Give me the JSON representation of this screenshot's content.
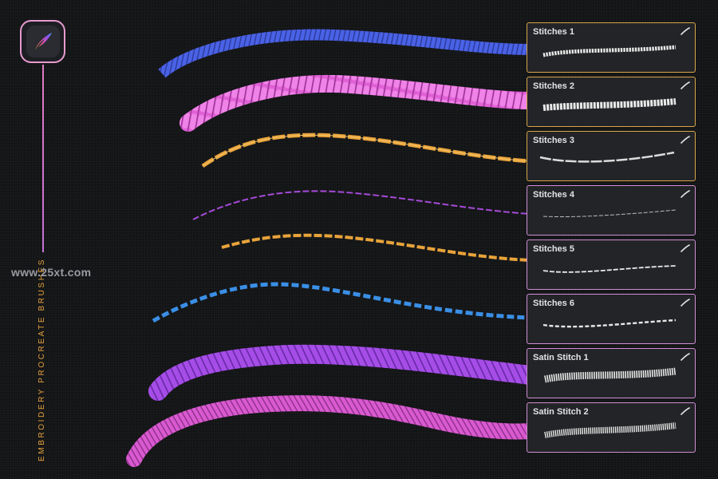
{
  "app": {
    "icon": "procreate-brush-icon",
    "vertical_title": "EMBROIDERY PROCREATE BRUSHES",
    "watermark": "www.25xt.com"
  },
  "brushes": [
    {
      "label": "Stitches 1",
      "color": "#4a62e6",
      "border": "#d7a64a",
      "icon": "pen-stroke-icon"
    },
    {
      "label": "Stitches 2",
      "color": "#e060d6",
      "border": "#d7a64a",
      "icon": "pen-stroke-icon"
    },
    {
      "label": "Stitches 3",
      "color": "#e8a33a",
      "border": "#d7a64a",
      "icon": "pen-stroke-icon"
    },
    {
      "label": "Stitches 4",
      "color": "#a44ad8",
      "border": "#d08fd6",
      "icon": "pen-stroke-icon"
    },
    {
      "label": "Stitches 5",
      "color": "#e8a33a",
      "border": "#d08fd6",
      "icon": "pen-stroke-icon"
    },
    {
      "label": "Stitches 6",
      "color": "#3a8fe6",
      "border": "#d08fd6",
      "icon": "pen-stroke-icon"
    },
    {
      "label": "Satin Stitch 1",
      "color": "#a64de8",
      "border": "#d08fd6",
      "icon": "pen-stroke-icon"
    },
    {
      "label": "Satin Stitch 2",
      "color": "#d95ad0",
      "border": "#d08fd6",
      "icon": "pen-stroke-icon"
    }
  ]
}
